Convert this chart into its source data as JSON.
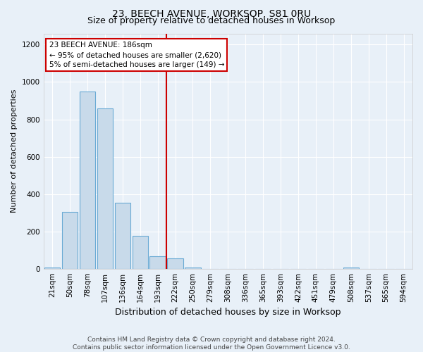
{
  "title": "23, BEECH AVENUE, WORKSOP, S81 0RU",
  "subtitle": "Size of property relative to detached houses in Worksop",
  "xlabel": "Distribution of detached houses by size in Worksop",
  "ylabel": "Number of detached properties",
  "footer_line1": "Contains HM Land Registry data © Crown copyright and database right 2024.",
  "footer_line2": "Contains public sector information licensed under the Open Government Licence v3.0.",
  "categories": [
    "21sqm",
    "50sqm",
    "78sqm",
    "107sqm",
    "136sqm",
    "164sqm",
    "193sqm",
    "222sqm",
    "250sqm",
    "279sqm",
    "308sqm",
    "336sqm",
    "365sqm",
    "393sqm",
    "422sqm",
    "451sqm",
    "479sqm",
    "508sqm",
    "537sqm",
    "565sqm",
    "594sqm"
  ],
  "values": [
    5,
    305,
    950,
    860,
    355,
    175,
    65,
    55,
    5,
    0,
    0,
    0,
    0,
    0,
    0,
    0,
    0,
    5,
    0,
    0,
    0
  ],
  "bar_color": "#c8daea",
  "bar_edge_color": "#6aaad4",
  "red_line_color": "#cc0000",
  "red_line_x": 6.5,
  "annotation_text_line1": "23 BEECH AVENUE: 186sqm",
  "annotation_text_line2": "← 95% of detached houses are smaller (2,620)",
  "annotation_text_line3": "5% of semi-detached houses are larger (149) →",
  "annotation_box_color": "white",
  "annotation_box_edge_color": "#cc0000",
  "ylim": [
    0,
    1260
  ],
  "yticks": [
    0,
    200,
    400,
    600,
    800,
    1000,
    1200
  ],
  "background_color": "#e8f0f8",
  "plot_background_color": "#e8f0f8",
  "grid_color": "#ffffff",
  "title_fontsize": 10,
  "subtitle_fontsize": 9,
  "xlabel_fontsize": 9,
  "ylabel_fontsize": 8,
  "tick_fontsize": 7.5,
  "footer_fontsize": 6.5
}
